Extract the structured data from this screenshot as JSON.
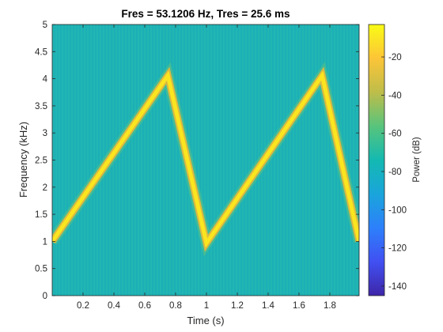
{
  "chart_data": {
    "type": "heatmap",
    "title": "Fres = 53.1206 Hz, Tres = 25.6 ms",
    "xlabel": "Time (s)",
    "ylabel": "Frequency (kHz)",
    "xlim": [
      0,
      1.99
    ],
    "ylim": [
      0,
      5
    ],
    "x_ticks": [
      0.2,
      0.4,
      0.6,
      0.8,
      1,
      1.2,
      1.4,
      1.6,
      1.8
    ],
    "x_tick_labels": [
      "0.2",
      "0.4",
      "0.6",
      "0.8",
      "1",
      "1.2",
      "1.4",
      "1.6",
      "1.8"
    ],
    "y_ticks": [
      0,
      0.5,
      1,
      1.5,
      2,
      2.5,
      3,
      3.5,
      4,
      4.5,
      5
    ],
    "y_tick_labels": [
      "0",
      "0.5",
      "1",
      "1.5",
      "2",
      "2.5",
      "3",
      "3.5",
      "4",
      "4.5",
      "5"
    ],
    "background_power_db": -75,
    "peak_power_db": -3,
    "series": [
      {
        "x": [
          0,
          0.75,
          1.0,
          1.75,
          1.99
        ],
        "y": [
          1.0,
          4.06,
          0.97,
          4.06,
          1.0
        ]
      }
    ],
    "colorbar": {
      "label": "Power (dB)",
      "range": [
        -145,
        -3
      ],
      "ticks": [
        -20,
        -40,
        -60,
        -80,
        -100,
        -120,
        -140
      ],
      "tick_labels": [
        "-20",
        "-40",
        "-60",
        "-80",
        "-100",
        "-120",
        "-140"
      ]
    },
    "colors": {
      "background": "#1eb3b5",
      "ridge_core": "#fbe51f",
      "ridge_edge": "#f4b934"
    },
    "colormap": [
      "#3e26a8",
      "#4150f2",
      "#2d80fb",
      "#1aa5db",
      "#14b9b1",
      "#58c47c",
      "#bebd4a",
      "#fcc538",
      "#f9fb15"
    ]
  }
}
